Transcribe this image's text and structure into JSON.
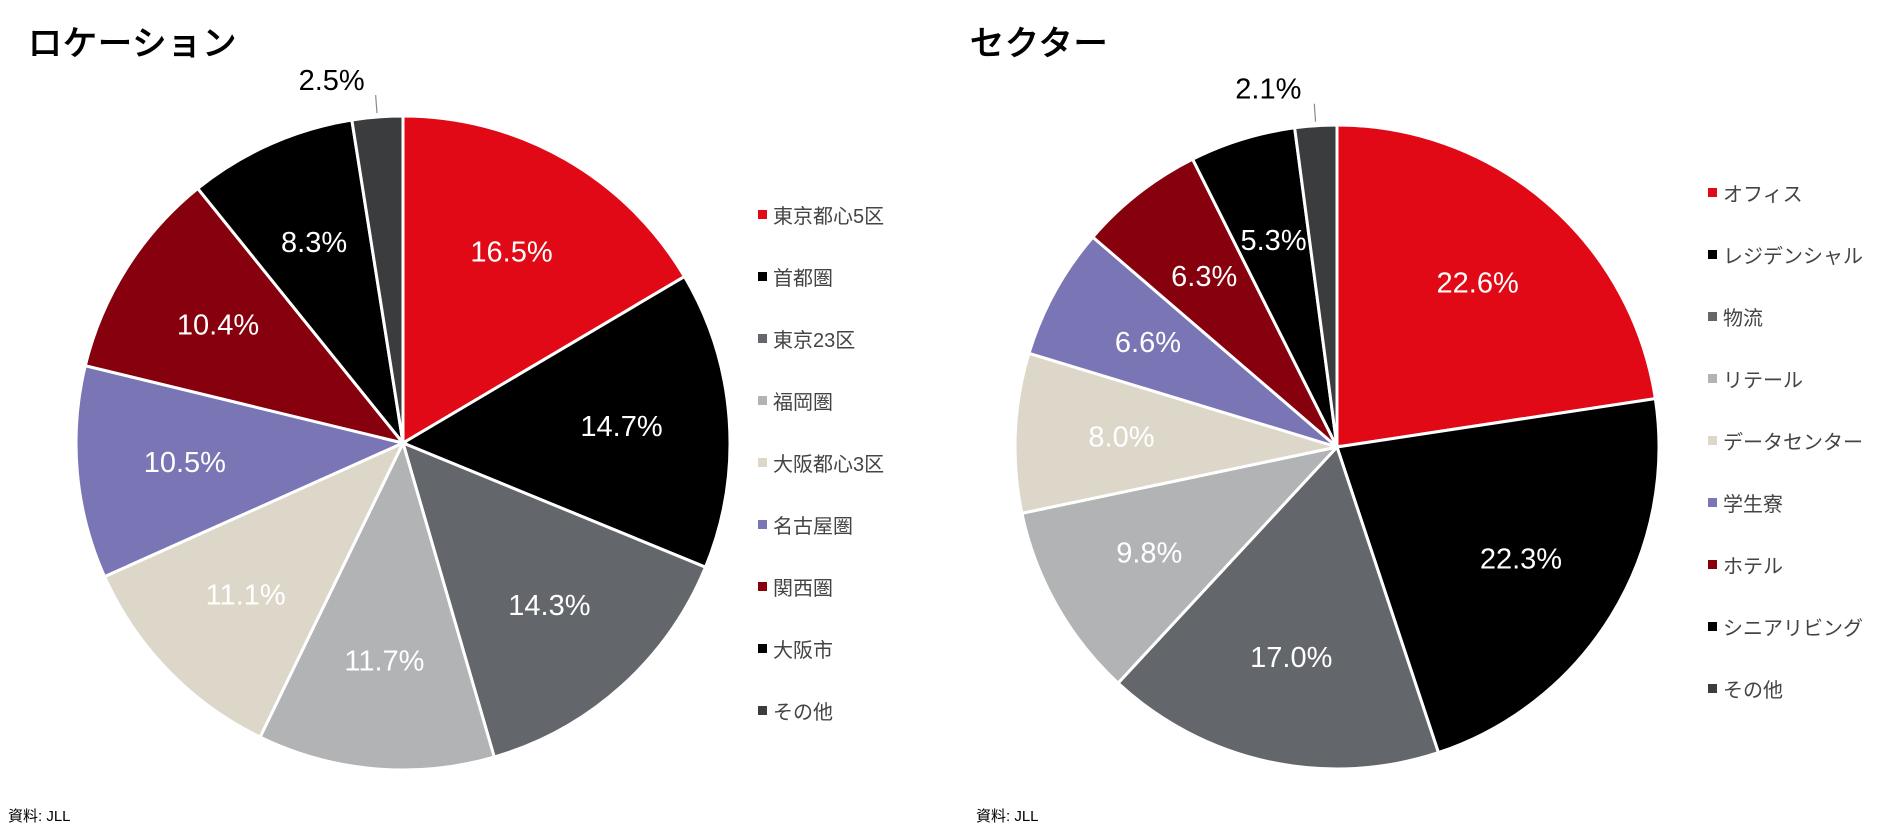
{
  "colors": {
    "red": "#e10916",
    "black": "#000000",
    "dark_gray": "#63666a",
    "light_gray": "#b1b3b4",
    "beige": "#dcd7c9",
    "purple": "#7a76b5",
    "dark_red": "#86000d",
    "charcoal": "#3a3c3e"
  },
  "chart_data": [
    {
      "type": "pie",
      "title": "ロケーション",
      "source": "資料: JLL",
      "legend_position": "right",
      "slices": [
        {
          "name": "東京都心5区",
          "value": 16.5,
          "label": "16.5%",
          "color": "#e10916",
          "label_color": "#ffffff"
        },
        {
          "name": "首都圏",
          "value": 14.7,
          "label": "14.7%",
          "color": "#000000",
          "label_color": "#ffffff"
        },
        {
          "name": "東京23区",
          "value": 14.3,
          "label": "14.3%",
          "color": "#63666a",
          "label_color": "#ffffff"
        },
        {
          "name": "福岡圏",
          "value": 11.7,
          "label": "11.7%",
          "color": "#b1b3b4",
          "label_color": "#ffffff"
        },
        {
          "name": "大阪都心3区",
          "value": 11.1,
          "label": "11.1%",
          "color": "#dcd7c9",
          "label_color": "#ffffff"
        },
        {
          "name": "名古屋圏",
          "value": 10.5,
          "label": "10.5%",
          "color": "#7a76b5",
          "label_color": "#ffffff"
        },
        {
          "name": "関西圏",
          "value": 10.4,
          "label": "10.4%",
          "color": "#86000d",
          "label_color": "#ffffff"
        },
        {
          "name": "大阪市",
          "value": 8.3,
          "label": "8.3%",
          "color": "#000000",
          "label_color": "#ffffff"
        },
        {
          "name": "その他",
          "value": 2.5,
          "label": "2.5%",
          "color": "#3a3c3e",
          "label_color": "#000000",
          "outside": true
        }
      ]
    },
    {
      "type": "pie",
      "title": "セクター",
      "source": "資料: JLL",
      "legend_position": "right",
      "slices": [
        {
          "name": "オフィス",
          "value": 22.6,
          "label": "22.6%",
          "color": "#e10916",
          "label_color": "#ffffff"
        },
        {
          "name": "レジデンシャル",
          "value": 22.3,
          "label": "22.3%",
          "color": "#000000",
          "label_color": "#ffffff"
        },
        {
          "name": "物流",
          "value": 17.0,
          "label": "17.0%",
          "color": "#63666a",
          "label_color": "#ffffff"
        },
        {
          "name": "リテール",
          "value": 9.8,
          "label": "9.8%",
          "color": "#b1b3b4",
          "label_color": "#ffffff"
        },
        {
          "name": "データセンター",
          "value": 8.0,
          "label": "8.0%",
          "color": "#dcd7c9",
          "label_color": "#ffffff"
        },
        {
          "name": "学生寮",
          "value": 6.6,
          "label": "6.6%",
          "color": "#7a76b5",
          "label_color": "#ffffff"
        },
        {
          "name": "ホテル",
          "value": 6.3,
          "label": "6.3%",
          "color": "#86000d",
          "label_color": "#ffffff"
        },
        {
          "name": "シニアリビング",
          "value": 5.3,
          "label": "5.3%",
          "color": "#000000",
          "label_color": "#ffffff"
        },
        {
          "name": "その他",
          "value": 2.1,
          "label": "2.1%",
          "color": "#3a3c3e",
          "label_color": "#000000",
          "outside": true
        }
      ]
    }
  ]
}
